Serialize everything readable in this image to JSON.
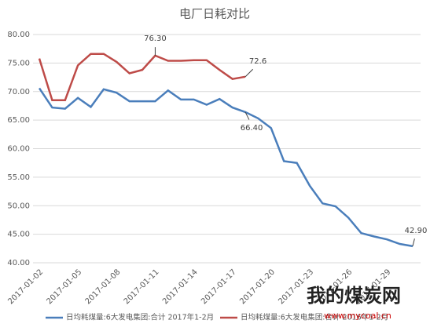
{
  "chart_data": {
    "type": "line",
    "title": "电厂日耗对比",
    "categories": [
      "2017-01-02",
      null,
      null,
      "2017-01-05",
      null,
      null,
      "2017-01-08",
      null,
      null,
      "2017-01-11",
      null,
      null,
      "2017-01-14",
      null,
      null,
      "2017-01-17",
      null,
      null,
      "2017-01-20",
      null,
      null,
      "2017-01-23",
      null,
      null,
      "2017-01-26",
      null,
      null,
      "2017-01-29",
      null,
      null
    ],
    "series": [
      {
        "name": "日均耗煤量:6大发电集团:合计 2017年1-2月",
        "color": "#4a7ebb",
        "values": [
          70.6,
          67.2,
          67.0,
          68.9,
          67.3,
          70.4,
          69.8,
          68.3,
          68.3,
          68.3,
          70.2,
          68.6,
          68.6,
          67.7,
          68.7,
          67.2,
          66.4,
          65.3,
          63.6,
          57.8,
          57.5,
          53.5,
          50.4,
          49.9,
          47.9,
          45.2,
          44.6,
          44.1,
          43.3,
          42.9
        ],
        "value_labels": [
          null,
          null,
          null,
          null,
          null,
          null,
          null,
          null,
          null,
          null,
          null,
          null,
          null,
          null,
          null,
          null,
          "66.40",
          null,
          null,
          null,
          null,
          null,
          null,
          null,
          null,
          null,
          null,
          null,
          null,
          "42.90"
        ]
      },
      {
        "name": "日均耗煤量:6大发电集团:合计 2016年1-2月",
        "color": "#be4b48",
        "values": [
          75.8,
          68.5,
          68.5,
          74.6,
          76.6,
          76.6,
          75.2,
          73.2,
          73.8,
          76.3,
          75.4,
          75.4,
          75.5,
          75.5,
          73.8,
          72.2,
          72.6,
          null,
          null,
          null,
          null,
          null,
          null,
          null,
          null,
          null,
          null,
          null,
          null,
          null
        ],
        "value_labels": [
          null,
          null,
          null,
          null,
          null,
          null,
          null,
          null,
          null,
          "76.30",
          null,
          null,
          null,
          null,
          null,
          null,
          "72.6",
          null,
          null,
          null,
          null,
          null,
          null,
          null,
          null,
          null,
          null,
          null,
          null,
          null
        ]
      }
    ],
    "ylim": [
      40,
      80
    ],
    "yticks": [
      {
        "value": 40,
        "label": "40.00"
      },
      {
        "value": 45,
        "label": "45.00"
      },
      {
        "value": 50,
        "label": "50.00"
      },
      {
        "value": 55,
        "label": "55.00"
      },
      {
        "value": 60,
        "label": "60.00"
      },
      {
        "value": 65,
        "label": "65.00"
      },
      {
        "value": 70,
        "label": "70.00"
      },
      {
        "value": 75,
        "label": "75.00"
      },
      {
        "value": 80,
        "label": "80.00"
      }
    ],
    "grid": true,
    "legend": "bottom",
    "watermark": "我的煤炭网",
    "watermark_url": "www.mycoal.cn"
  }
}
